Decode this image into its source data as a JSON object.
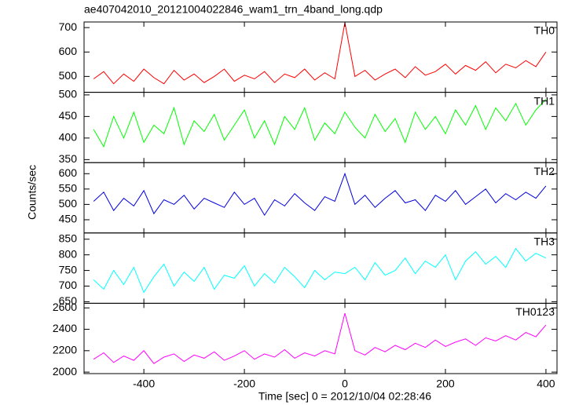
{
  "chart_data": [
    {
      "type": "line",
      "title": "ae407042010_20121004022846_wam1_trn_4band_long.qdp",
      "ylabel": "Counts/sec",
      "xlim": [
        -519,
        422
      ],
      "ylim": [
        435,
        723
      ],
      "yticks": [
        500,
        600,
        700
      ],
      "x": [
        -500,
        -480,
        -460,
        -440,
        -420,
        -400,
        -380,
        -360,
        -340,
        -320,
        -300,
        -280,
        -260,
        -240,
        -220,
        -200,
        -180,
        -160,
        -140,
        -120,
        -100,
        -80,
        -60,
        -40,
        -20,
        0,
        20,
        40,
        60,
        80,
        100,
        120,
        140,
        160,
        180,
        200,
        220,
        240,
        260,
        280,
        300,
        320,
        340,
        360,
        380,
        400
      ],
      "series": [
        {
          "name": "TH0",
          "color": "#ff0000",
          "values": [
            490,
            520,
            470,
            510,
            480,
            530,
            495,
            470,
            525,
            485,
            510,
            475,
            500,
            530,
            480,
            505,
            490,
            520,
            475,
            510,
            495,
            530,
            485,
            515,
            490,
            720,
            500,
            525,
            485,
            510,
            530,
            495,
            540,
            505,
            520,
            550,
            510,
            545,
            525,
            560,
            515,
            550,
            535,
            565,
            540,
            600
          ]
        }
      ]
    },
    {
      "type": "line",
      "xlim": [
        -519,
        422
      ],
      "ylim": [
        343,
        506
      ],
      "yticks": [
        350,
        400,
        450,
        500
      ],
      "x": [
        -500,
        -480,
        -460,
        -440,
        -420,
        -400,
        -380,
        -360,
        -340,
        -320,
        -300,
        -280,
        -260,
        -240,
        -220,
        -200,
        -180,
        -160,
        -140,
        -120,
        -100,
        -80,
        -60,
        -40,
        -20,
        0,
        20,
        40,
        60,
        80,
        100,
        120,
        140,
        160,
        180,
        200,
        220,
        240,
        260,
        280,
        300,
        320,
        340,
        360,
        380,
        400
      ],
      "series": [
        {
          "name": "TH1",
          "color": "#00ff00",
          "values": [
            420,
            380,
            450,
            400,
            460,
            390,
            430,
            410,
            470,
            385,
            440,
            415,
            455,
            395,
            430,
            465,
            400,
            440,
            385,
            450,
            420,
            470,
            395,
            435,
            410,
            460,
            425,
            400,
            455,
            415,
            445,
            390,
            460,
            420,
            450,
            410,
            465,
            430,
            475,
            420,
            470,
            440,
            480,
            430,
            465,
            490
          ]
        }
      ]
    },
    {
      "type": "line",
      "xlim": [
        -519,
        422
      ],
      "ylim": [
        407,
        636
      ],
      "yticks": [
        450,
        500,
        550,
        600
      ],
      "x": [
        -500,
        -480,
        -460,
        -440,
        -420,
        -400,
        -380,
        -360,
        -340,
        -320,
        -300,
        -280,
        -260,
        -240,
        -220,
        -200,
        -180,
        -160,
        -140,
        -120,
        -100,
        -80,
        -60,
        -40,
        -20,
        0,
        20,
        40,
        60,
        80,
        100,
        120,
        140,
        160,
        180,
        200,
        220,
        240,
        260,
        280,
        300,
        320,
        340,
        360,
        380,
        400
      ],
      "series": [
        {
          "name": "TH2",
          "color": "#0000e0",
          "values": [
            510,
            540,
            480,
            520,
            495,
            545,
            470,
            515,
            500,
            530,
            485,
            520,
            505,
            490,
            540,
            500,
            520,
            465,
            515,
            495,
            535,
            505,
            480,
            525,
            510,
            600,
            500,
            530,
            490,
            520,
            545,
            505,
            515,
            480,
            530,
            510,
            545,
            500,
            525,
            550,
            505,
            535,
            515,
            540,
            520,
            560
          ]
        }
      ]
    },
    {
      "type": "line",
      "xlim": [
        -519,
        422
      ],
      "ylim": [
        645,
        870
      ],
      "yticks": [
        650,
        700,
        750,
        800,
        850
      ],
      "x": [
        -500,
        -480,
        -460,
        -440,
        -420,
        -400,
        -380,
        -360,
        -340,
        -320,
        -300,
        -280,
        -260,
        -240,
        -220,
        -200,
        -180,
        -160,
        -140,
        -120,
        -100,
        -80,
        -60,
        -40,
        -20,
        0,
        20,
        40,
        60,
        80,
        100,
        120,
        140,
        160,
        180,
        200,
        220,
        240,
        260,
        280,
        300,
        320,
        340,
        360,
        380,
        400
      ],
      "series": [
        {
          "name": "TH3",
          "color": "#00ffff",
          "values": [
            720,
            690,
            750,
            705,
            760,
            680,
            730,
            770,
            700,
            745,
            715,
            760,
            690,
            735,
            725,
            765,
            700,
            740,
            710,
            760,
            730,
            695,
            750,
            720,
            745,
            740,
            760,
            720,
            775,
            735,
            750,
            790,
            740,
            780,
            760,
            800,
            720,
            780,
            810,
            770,
            795,
            760,
            820,
            780,
            805,
            790
          ]
        }
      ]
    },
    {
      "type": "line",
      "xlabel": "Time [sec] 0 = 2012/10/04 02:28:46",
      "xlim": [
        -519,
        422
      ],
      "xticks": [
        -400,
        -200,
        0,
        200,
        400
      ],
      "ylim": [
        1986,
        2643
      ],
      "yticks": [
        2000,
        2200,
        2400,
        2600
      ],
      "x": [
        -500,
        -480,
        -460,
        -440,
        -420,
        -400,
        -380,
        -360,
        -340,
        -320,
        -300,
        -280,
        -260,
        -240,
        -220,
        -200,
        -180,
        -160,
        -140,
        -120,
        -100,
        -80,
        -60,
        -40,
        -20,
        0,
        20,
        40,
        60,
        80,
        100,
        120,
        140,
        160,
        180,
        200,
        220,
        240,
        260,
        280,
        300,
        320,
        340,
        360,
        380,
        400
      ],
      "series": [
        {
          "name": "TH0123",
          "color": "#ff00ff",
          "values": [
            2120,
            2180,
            2090,
            2150,
            2110,
            2200,
            2080,
            2140,
            2170,
            2100,
            2160,
            2130,
            2190,
            2110,
            2150,
            2200,
            2120,
            2170,
            2140,
            2210,
            2130,
            2180,
            2150,
            2200,
            2170,
            2550,
            2200,
            2160,
            2230,
            2190,
            2250,
            2210,
            2270,
            2230,
            2300,
            2240,
            2280,
            2310,
            2250,
            2320,
            2290,
            2340,
            2300,
            2370,
            2330,
            2440
          ]
        }
      ]
    }
  ]
}
